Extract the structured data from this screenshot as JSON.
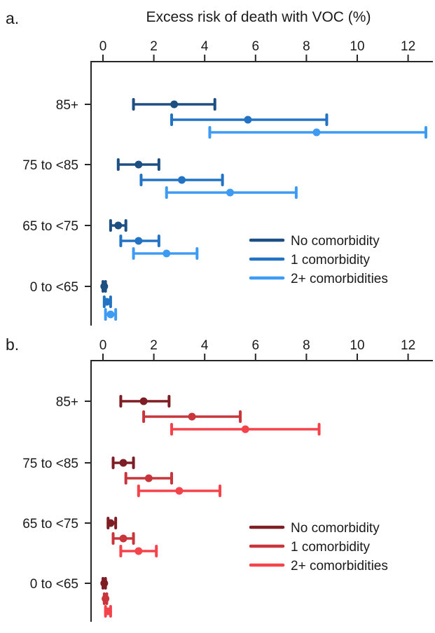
{
  "figure": {
    "axis_color": "#262626",
    "text_color": "#1a1a1a"
  },
  "chart_data": [
    {
      "panel_label": "a.",
      "type": "scatter",
      "subtype": "forest-plot-error-bars",
      "title": "Excess risk of death with VOC (%)",
      "xlabel": "Excess risk of death with VOC (%)",
      "ylabel": "",
      "xlim": [
        0,
        12.8
      ],
      "xticks": [
        0,
        2,
        4,
        6,
        8,
        10,
        12
      ],
      "grid": "off",
      "legend_position": "inside-right",
      "categories": [
        "85+",
        "75 to <85",
        "65 to <75",
        "0 to <65"
      ],
      "series": [
        {
          "name": "No comorbidity",
          "color": "#1d4f82",
          "points": [
            {
              "category": "85+",
              "estimate": 2.8,
              "ci_low": 1.2,
              "ci_high": 4.4
            },
            {
              "category": "75 to <85",
              "estimate": 1.4,
              "ci_low": 0.6,
              "ci_high": 2.2
            },
            {
              "category": "65 to <75",
              "estimate": 0.6,
              "ci_low": 0.3,
              "ci_high": 0.9
            },
            {
              "category": "0 to <65",
              "estimate": 0.05,
              "ci_low": 0.0,
              "ci_high": 0.1
            }
          ]
        },
        {
          "name": "1 comorbidity",
          "color": "#2273c3",
          "points": [
            {
              "category": "85+",
              "estimate": 5.7,
              "ci_low": 2.7,
              "ci_high": 8.8
            },
            {
              "category": "75 to <85",
              "estimate": 3.1,
              "ci_low": 1.5,
              "ci_high": 4.7
            },
            {
              "category": "65 to <75",
              "estimate": 1.4,
              "ci_low": 0.7,
              "ci_high": 2.2
            },
            {
              "category": "0 to <65",
              "estimate": 0.15,
              "ci_low": 0.05,
              "ci_high": 0.3
            }
          ]
        },
        {
          "name": "2+ comorbidities",
          "color": "#3e9bf4",
          "points": [
            {
              "category": "85+",
              "estimate": 8.4,
              "ci_low": 4.2,
              "ci_high": 12.7
            },
            {
              "category": "75 to <85",
              "estimate": 5.0,
              "ci_low": 2.5,
              "ci_high": 7.6
            },
            {
              "category": "65 to <75",
              "estimate": 2.5,
              "ci_low": 1.2,
              "ci_high": 3.7
            },
            {
              "category": "0 to <65",
              "estimate": 0.3,
              "ci_low": 0.1,
              "ci_high": 0.5
            }
          ]
        }
      ]
    },
    {
      "panel_label": "b.",
      "type": "scatter",
      "subtype": "forest-plot-error-bars",
      "title": "",
      "xlabel": "",
      "ylabel": "",
      "xlim": [
        0,
        12.8
      ],
      "xticks": [
        0,
        2,
        4,
        6,
        8,
        10,
        12
      ],
      "grid": "off",
      "legend_position": "inside-right",
      "categories": [
        "85+",
        "75 to <85",
        "65 to <75",
        "0 to <65"
      ],
      "series": [
        {
          "name": "No comorbidity",
          "color": "#7e1e24",
          "points": [
            {
              "category": "85+",
              "estimate": 1.6,
              "ci_low": 0.7,
              "ci_high": 2.6
            },
            {
              "category": "75 to <85",
              "estimate": 0.8,
              "ci_low": 0.4,
              "ci_high": 1.2
            },
            {
              "category": "65 to <75",
              "estimate": 0.3,
              "ci_low": 0.2,
              "ci_high": 0.5
            },
            {
              "category": "0 to <65",
              "estimate": 0.05,
              "ci_low": 0.0,
              "ci_high": 0.1
            }
          ]
        },
        {
          "name": "1 comorbidity",
          "color": "#c8353a",
          "points": [
            {
              "category": "85+",
              "estimate": 3.5,
              "ci_low": 1.6,
              "ci_high": 5.4
            },
            {
              "category": "75 to <85",
              "estimate": 1.8,
              "ci_low": 0.9,
              "ci_high": 2.7
            },
            {
              "category": "65 to <75",
              "estimate": 0.8,
              "ci_low": 0.4,
              "ci_high": 1.2
            },
            {
              "category": "0 to <65",
              "estimate": 0.1,
              "ci_low": 0.05,
              "ci_high": 0.15
            }
          ]
        },
        {
          "name": "2+ comorbidities",
          "color": "#f4434a",
          "points": [
            {
              "category": "85+",
              "estimate": 5.6,
              "ci_low": 2.7,
              "ci_high": 8.5
            },
            {
              "category": "75 to <85",
              "estimate": 3.0,
              "ci_low": 1.4,
              "ci_high": 4.6
            },
            {
              "category": "65 to <75",
              "estimate": 1.4,
              "ci_low": 0.7,
              "ci_high": 2.1
            },
            {
              "category": "0 to <65",
              "estimate": 0.2,
              "ci_low": 0.1,
              "ci_high": 0.3
            }
          ]
        }
      ]
    }
  ]
}
